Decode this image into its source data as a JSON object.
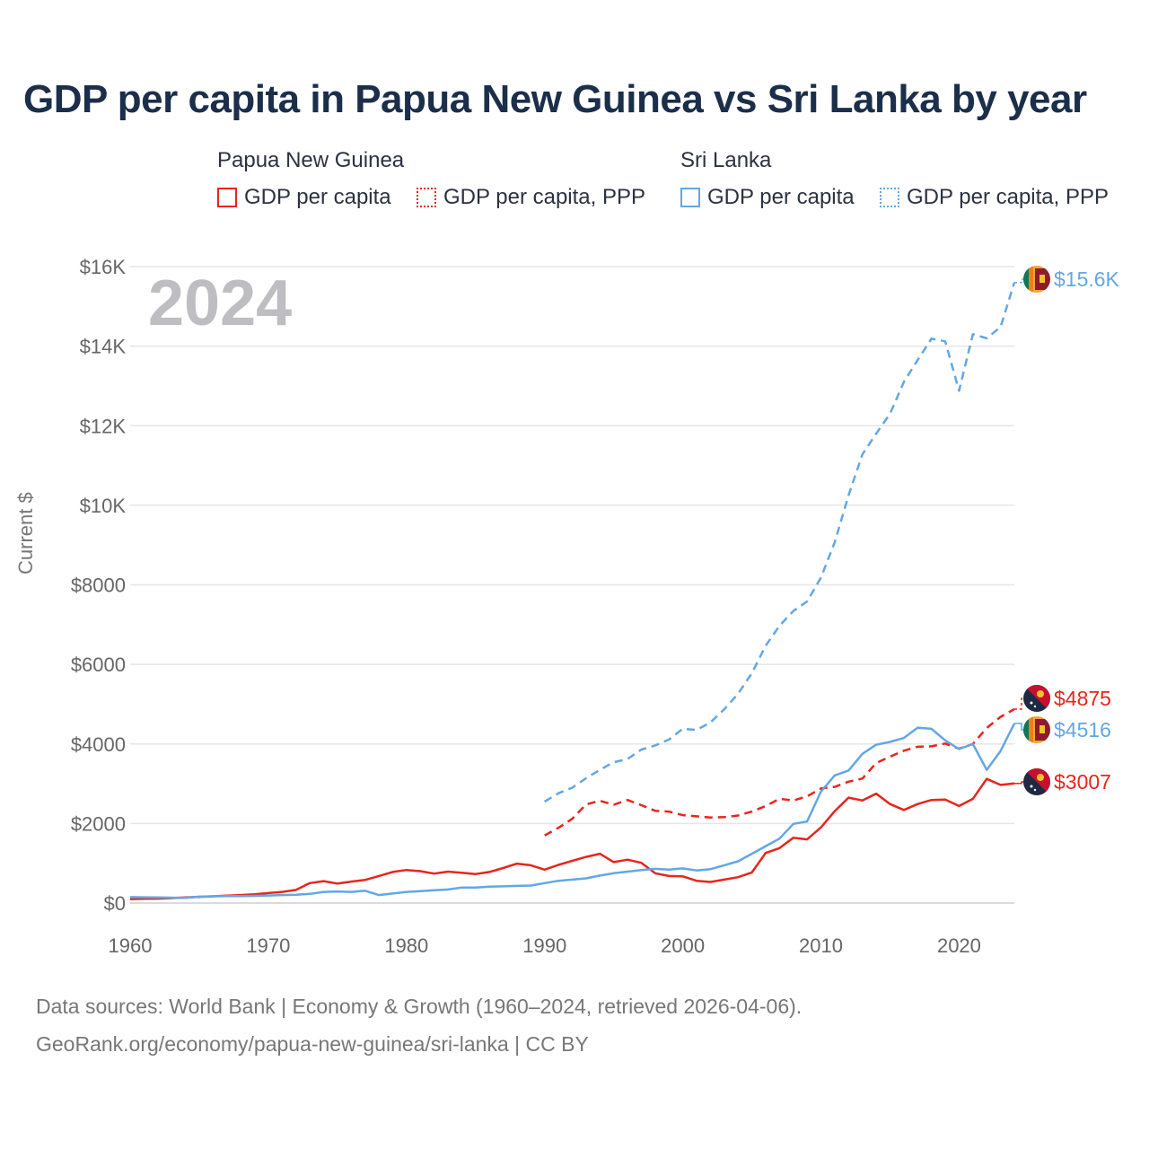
{
  "title": "GDP per capita in Papua New Guinea vs Sri Lanka by year",
  "legend": {
    "groups": [
      {
        "country": "Papua New Guinea",
        "items": [
          {
            "label": "GDP per capita",
            "style": "solid"
          },
          {
            "label": "GDP per capita, PPP",
            "style": "dotted"
          }
        ],
        "color": "#e8251c"
      },
      {
        "country": "Sri Lanka",
        "items": [
          {
            "label": "GDP per capita",
            "style": "solid"
          },
          {
            "label": "GDP per capita, PPP",
            "style": "dotted"
          }
        ],
        "color": "#63a7e4"
      }
    ]
  },
  "year_watermark": "2024",
  "source_lines": [
    "Data sources: World Bank | Economy & Growth (1960–2024, retrieved 2026-04-06).",
    "GeoRank.org/economy/papua-new-guinea/sri-lanka | CC BY"
  ],
  "chart_data": {
    "type": "line",
    "title": "GDP per capita in Papua New Guinea vs Sri Lanka by year",
    "xlabel": "",
    "ylabel": "Current $",
    "xlim": [
      1960,
      2024
    ],
    "ylim": [
      0,
      16000
    ],
    "x_ticks": [
      1960,
      1970,
      1980,
      1990,
      2000,
      2010,
      2020
    ],
    "y_ticks": [
      0,
      2000,
      4000,
      6000,
      8000,
      10000,
      12000,
      14000,
      16000
    ],
    "y_tick_labels": [
      "$0",
      "$2000",
      "$4000",
      "$6000",
      "$8000",
      "$10K",
      "$12K",
      "$14K",
      "$16K"
    ],
    "grid": true,
    "series": [
      {
        "name": "Papua New Guinea GDP per capita",
        "color": "#e8251c",
        "dash": "solid",
        "end_label": "$3007",
        "x": [
          1960,
          1961,
          1962,
          1963,
          1964,
          1965,
          1966,
          1967,
          1968,
          1969,
          1970,
          1971,
          1972,
          1973,
          1974,
          1975,
          1976,
          1977,
          1978,
          1979,
          1980,
          1981,
          1982,
          1983,
          1984,
          1985,
          1986,
          1987,
          1988,
          1989,
          1990,
          1991,
          1992,
          1993,
          1994,
          1995,
          1996,
          1997,
          1998,
          1999,
          2000,
          2001,
          2002,
          2003,
          2004,
          2005,
          2006,
          2007,
          2008,
          2009,
          2010,
          2011,
          2012,
          2013,
          2014,
          2015,
          2016,
          2017,
          2018,
          2019,
          2020,
          2021,
          2022,
          2023,
          2024
        ],
        "y": [
          100,
          105,
          110,
          125,
          140,
          155,
          170,
          185,
          200,
          220,
          250,
          280,
          330,
          500,
          550,
          490,
          540,
          580,
          680,
          780,
          830,
          800,
          740,
          790,
          760,
          730,
          780,
          880,
          990,
          950,
          840,
          960,
          1060,
          1160,
          1240,
          1030,
          1090,
          1010,
          750,
          680,
          670,
          560,
          530,
          590,
          650,
          770,
          1260,
          1380,
          1640,
          1600,
          1900,
          2310,
          2650,
          2580,
          2750,
          2490,
          2340,
          2490,
          2590,
          2600,
          2440,
          2620,
          3120,
          2970,
          3007
        ]
      },
      {
        "name": "Papua New Guinea GDP per capita, PPP",
        "color": "#e8251c",
        "dash": "dashed",
        "end_label": "$4875",
        "x": [
          1990,
          1991,
          1992,
          1993,
          1994,
          1995,
          1996,
          1997,
          1998,
          1999,
          2000,
          2001,
          2002,
          2003,
          2004,
          2005,
          2006,
          2007,
          2008,
          2009,
          2010,
          2011,
          2012,
          2013,
          2014,
          2015,
          2016,
          2017,
          2018,
          2019,
          2020,
          2021,
          2022,
          2023,
          2024
        ],
        "y": [
          1700,
          1890,
          2120,
          2480,
          2570,
          2470,
          2590,
          2460,
          2320,
          2300,
          2210,
          2180,
          2150,
          2160,
          2200,
          2300,
          2440,
          2620,
          2580,
          2680,
          2880,
          2920,
          3050,
          3130,
          3520,
          3680,
          3830,
          3930,
          3940,
          4010,
          3880,
          4000,
          4400,
          4680,
          4875
        ]
      },
      {
        "name": "Sri Lanka GDP per capita",
        "color": "#63a7e4",
        "dash": "solid",
        "end_label": "$4516",
        "x": [
          1960,
          1961,
          1962,
          1963,
          1964,
          1965,
          1966,
          1967,
          1968,
          1969,
          1970,
          1971,
          1972,
          1973,
          1974,
          1975,
          1976,
          1977,
          1978,
          1979,
          1980,
          1981,
          1982,
          1983,
          1984,
          1985,
          1986,
          1987,
          1988,
          1989,
          1990,
          1991,
          1992,
          1993,
          1994,
          1995,
          1996,
          1997,
          1998,
          1999,
          2000,
          2001,
          2002,
          2003,
          2004,
          2005,
          2006,
          2007,
          2008,
          2009,
          2010,
          2011,
          2012,
          2013,
          2014,
          2015,
          2016,
          2017,
          2018,
          2019,
          2020,
          2021,
          2022,
          2023,
          2024
        ],
        "y": [
          150,
          145,
          140,
          135,
          130,
          160,
          170,
          175,
          175,
          180,
          190,
          200,
          210,
          230,
          280,
          290,
          280,
          310,
          200,
          240,
          280,
          300,
          320,
          340,
          390,
          390,
          410,
          420,
          430,
          440,
          500,
          560,
          590,
          620,
          690,
          750,
          790,
          830,
          860,
          840,
          870,
          820,
          850,
          950,
          1050,
          1240,
          1430,
          1620,
          1990,
          2050,
          2800,
          3210,
          3330,
          3750,
          3980,
          4050,
          4150,
          4410,
          4380,
          4090,
          3870,
          4000,
          3350,
          3820,
          4516
        ]
      },
      {
        "name": "Sri Lanka GDP per capita, PPP",
        "color": "#63a7e4",
        "dash": "dashed",
        "end_label": "$15.6K",
        "x": [
          1990,
          1991,
          1992,
          1993,
          1994,
          1995,
          1996,
          1997,
          1998,
          1999,
          2000,
          2001,
          2002,
          2003,
          2004,
          2005,
          2006,
          2007,
          2008,
          2009,
          2010,
          2011,
          2012,
          2013,
          2014,
          2015,
          2016,
          2017,
          2018,
          2019,
          2020,
          2021,
          2022,
          2023,
          2024
        ],
        "y": [
          2550,
          2760,
          2900,
          3140,
          3350,
          3540,
          3620,
          3860,
          3960,
          4110,
          4380,
          4350,
          4540,
          4870,
          5260,
          5780,
          6470,
          6970,
          7340,
          7580,
          8180,
          9070,
          10250,
          11280,
          11800,
          12300,
          13100,
          13650,
          14190,
          14120,
          12880,
          14300,
          14200,
          14480,
          15600
        ]
      }
    ]
  }
}
